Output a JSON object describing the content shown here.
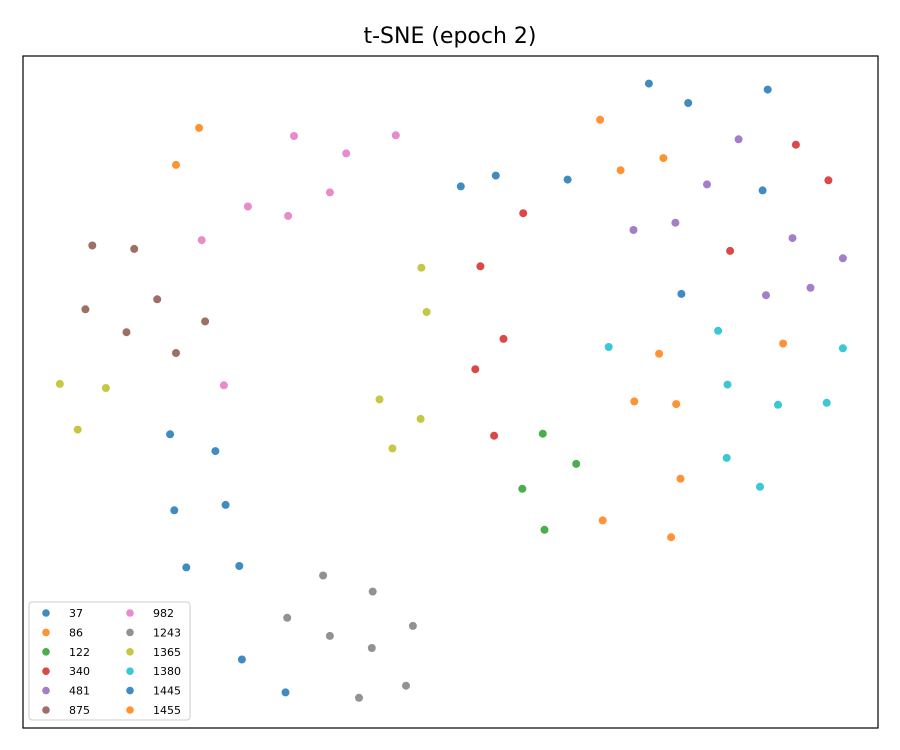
{
  "chart_data": {
    "type": "scatter",
    "title": "t-SNE (epoch 2)",
    "xlabel": "",
    "ylabel": "",
    "xlim": [
      0,
      100
    ],
    "ylim": [
      0,
      100
    ],
    "axis_ticks": false,
    "grid": false,
    "legend_position": "lower-left",
    "legend_columns": 2,
    "series": [
      {
        "name": "37",
        "color": "#1f77b4",
        "points": [
          [
            17.2,
            43.7
          ],
          [
            22.5,
            41.2
          ],
          [
            17.7,
            32.4
          ],
          [
            23.7,
            33.2
          ],
          [
            19.1,
            23.9
          ],
          [
            25.3,
            24.1
          ],
          [
            25.6,
            10.2
          ],
          [
            30.7,
            5.3
          ]
        ]
      },
      {
        "name": "86",
        "color": "#ff7f0e",
        "points": [
          [
            20.6,
            89.3
          ],
          [
            17.9,
            83.8
          ],
          [
            67.5,
            90.5
          ],
          [
            69.9,
            83.0
          ],
          [
            74.9,
            84.8
          ]
        ]
      },
      {
        "name": "122",
        "color": "#2ca02c",
        "points": [
          [
            60.8,
            43.8
          ],
          [
            64.7,
            39.3
          ],
          [
            58.4,
            35.6
          ],
          [
            61.0,
            29.5
          ]
        ]
      },
      {
        "name": "340",
        "color": "#d62728",
        "points": [
          [
            58.5,
            76.6
          ],
          [
            53.5,
            68.7
          ],
          [
            56.2,
            57.9
          ],
          [
            52.9,
            53.4
          ],
          [
            55.1,
            43.5
          ],
          [
            82.7,
            71.0
          ],
          [
            90.4,
            86.8
          ],
          [
            94.2,
            81.5
          ]
        ]
      },
      {
        "name": "481",
        "color": "#9467bd",
        "points": [
          [
            83.7,
            87.6
          ],
          [
            80.0,
            80.9
          ],
          [
            71.4,
            74.1
          ],
          [
            76.3,
            75.2
          ],
          [
            90.0,
            72.9
          ],
          [
            95.9,
            69.9
          ],
          [
            86.9,
            64.4
          ],
          [
            92.1,
            65.5
          ]
        ]
      },
      {
        "name": "875",
        "color": "#8c564b",
        "points": [
          [
            8.1,
            71.8
          ],
          [
            13.0,
            71.3
          ],
          [
            7.3,
            62.3
          ],
          [
            15.7,
            63.8
          ],
          [
            12.1,
            58.9
          ],
          [
            21.3,
            60.5
          ],
          [
            17.9,
            55.8
          ]
        ]
      },
      {
        "name": "982",
        "color": "#e377c2",
        "points": [
          [
            31.7,
            88.1
          ],
          [
            37.8,
            85.5
          ],
          [
            43.6,
            88.2
          ],
          [
            35.9,
            79.7
          ],
          [
            26.3,
            77.6
          ],
          [
            31.0,
            76.2
          ],
          [
            20.9,
            72.6
          ],
          [
            23.5,
            51.0
          ]
        ]
      },
      {
        "name": "1243",
        "color": "#7f7f7f",
        "points": [
          [
            35.1,
            22.7
          ],
          [
            40.9,
            20.3
          ],
          [
            30.9,
            16.4
          ],
          [
            35.9,
            13.7
          ],
          [
            45.6,
            15.2
          ],
          [
            40.8,
            11.9
          ],
          [
            44.8,
            6.3
          ],
          [
            39.3,
            4.5
          ]
        ]
      },
      {
        "name": "1365",
        "color": "#bcbd22",
        "points": [
          [
            46.6,
            68.5
          ],
          [
            47.2,
            61.9
          ],
          [
            4.3,
            51.2
          ],
          [
            9.7,
            50.6
          ],
          [
            6.4,
            44.4
          ],
          [
            41.7,
            48.9
          ],
          [
            46.5,
            46.0
          ],
          [
            43.2,
            41.6
          ]
        ]
      },
      {
        "name": "1380",
        "color": "#17becf",
        "points": [
          [
            81.3,
            59.1
          ],
          [
            68.5,
            56.7
          ],
          [
            95.9,
            56.5
          ],
          [
            82.4,
            51.1
          ],
          [
            88.3,
            48.1
          ],
          [
            94.0,
            48.4
          ],
          [
            82.3,
            40.2
          ],
          [
            86.2,
            35.9
          ]
        ]
      },
      {
        "name": "1445",
        "color": "#1f77b4",
        "points": [
          [
            73.2,
            95.9
          ],
          [
            77.8,
            93.0
          ],
          [
            87.1,
            95.0
          ],
          [
            55.3,
            82.2
          ],
          [
            63.7,
            81.6
          ],
          [
            51.2,
            80.6
          ],
          [
            86.5,
            80.0
          ],
          [
            77.0,
            64.6
          ]
        ]
      },
      {
        "name": "1455",
        "color": "#ff7f0e",
        "points": [
          [
            74.4,
            55.7
          ],
          [
            88.9,
            57.2
          ],
          [
            71.5,
            48.6
          ],
          [
            76.4,
            48.2
          ],
          [
            76.9,
            37.1
          ],
          [
            67.8,
            30.9
          ],
          [
            75.8,
            28.4
          ]
        ]
      }
    ]
  }
}
